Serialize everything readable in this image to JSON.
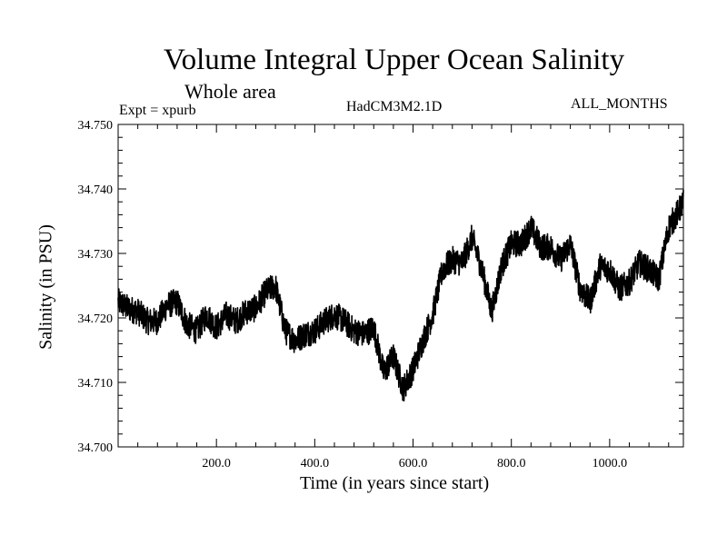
{
  "chart_data": {
    "type": "line",
    "title": "Volume Integral Upper Ocean Salinity",
    "subtitle": "Whole area",
    "annotations": {
      "experiment": "Expt = xpurb",
      "model": "HadCM3M2.1D",
      "months": "ALL_MONTHS"
    },
    "xlabel": "Time (in years since start)",
    "ylabel": "Salinity (in PSU)",
    "xlim": [
      0,
      1150
    ],
    "ylim": [
      34.7,
      34.75
    ],
    "xticks": [
      {
        "value": 200,
        "label": "200.0"
      },
      {
        "value": 400,
        "label": "400.0"
      },
      {
        "value": 600,
        "label": "600.0"
      },
      {
        "value": 800,
        "label": "800.0"
      },
      {
        "value": 1000,
        "label": "1000.0"
      }
    ],
    "yticks": [
      {
        "value": 34.7,
        "label": "34.700"
      },
      {
        "value": 34.71,
        "label": "34.710"
      },
      {
        "value": 34.72,
        "label": "34.720"
      },
      {
        "value": 34.73,
        "label": "34.730"
      },
      {
        "value": 34.74,
        "label": "34.740"
      },
      {
        "value": 34.75,
        "label": "34.750"
      }
    ],
    "series": [
      {
        "name": "Upper ocean salinity",
        "color": "#000000",
        "x": [
          0,
          20,
          40,
          60,
          80,
          100,
          120,
          140,
          160,
          180,
          200,
          220,
          240,
          260,
          280,
          300,
          320,
          340,
          360,
          380,
          400,
          420,
          440,
          460,
          480,
          500,
          520,
          540,
          560,
          580,
          600,
          620,
          640,
          660,
          680,
          700,
          720,
          740,
          760,
          780,
          800,
          820,
          840,
          860,
          880,
          900,
          920,
          940,
          960,
          980,
          1000,
          1020,
          1040,
          1060,
          1080,
          1100,
          1120,
          1140,
          1150
        ],
        "values": [
          34.7225,
          34.7215,
          34.721,
          34.7195,
          34.7195,
          34.722,
          34.7225,
          34.719,
          34.718,
          34.7205,
          34.7185,
          34.7205,
          34.7195,
          34.721,
          34.7215,
          34.724,
          34.725,
          34.718,
          34.7165,
          34.7175,
          34.718,
          34.7195,
          34.7205,
          34.7195,
          34.718,
          34.7175,
          34.7185,
          34.7115,
          34.714,
          34.709,
          34.712,
          34.7165,
          34.7205,
          34.7275,
          34.729,
          34.7285,
          34.7325,
          34.7275,
          34.721,
          34.728,
          34.7315,
          34.7315,
          34.734,
          34.731,
          34.731,
          34.729,
          34.7315,
          34.7245,
          34.7225,
          34.728,
          34.7275,
          34.7245,
          34.7255,
          34.7285,
          34.7275,
          34.726,
          34.734,
          34.7365,
          34.738
        ]
      }
    ]
  }
}
